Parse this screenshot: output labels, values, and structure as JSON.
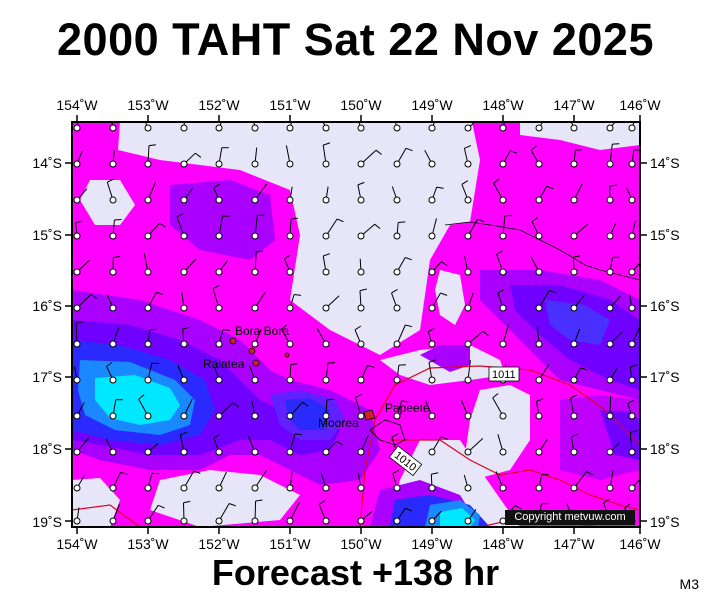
{
  "title": "2000 TAHT Sat 22 Nov 2025",
  "footer": "Forecast +138 hr",
  "model_label": "M3",
  "copyright": "Copyright metvuw.com",
  "lon_labels": [
    "154˚W",
    "153˚W",
    "152˚W",
    "151˚W",
    "150˚W",
    "149˚W",
    "148˚W",
    "147˚W",
    "146˚W"
  ],
  "lat_labels": [
    "14˚S",
    "15˚S",
    "16˚S",
    "17˚S",
    "18˚S",
    "19˚S"
  ],
  "places": [
    {
      "name": "Bora Bora"
    },
    {
      "name": "Raiatea"
    },
    {
      "name": "Moorea"
    },
    {
      "name": "Papeete"
    }
  ],
  "isobar_labels": [
    "1011",
    "1010"
  ],
  "colors": {
    "background_field": "#e6e6f8",
    "magenta": "#ff00ff",
    "violet": "#aa00ff",
    "purple": "#7000ff",
    "blue": "#2a2aff",
    "mid_blue": "#1a88ff",
    "cyan": "#00e8ff",
    "isobar": "#e00020"
  }
}
